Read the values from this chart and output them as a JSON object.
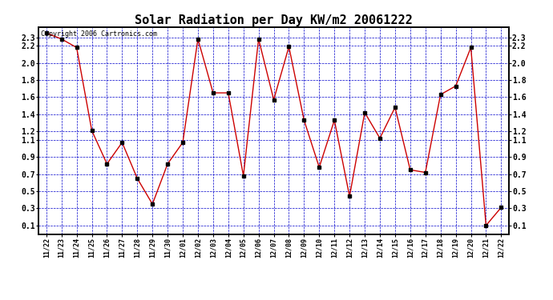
{
  "title": "Solar Radiation per Day KW/m2 20061222",
  "copyright": "Copyright 2006 Cartronics.com",
  "dates": [
    "11/22",
    "11/23",
    "11/24",
    "11/25",
    "11/26",
    "11/27",
    "11/28",
    "11/29",
    "11/30",
    "12/01",
    "12/02",
    "12/03",
    "12/04",
    "12/05",
    "12/06",
    "12/07",
    "12/08",
    "12/09",
    "12/10",
    "12/11",
    "12/12",
    "12/13",
    "12/14",
    "12/15",
    "12/16",
    "12/17",
    "12/18",
    "12/19",
    "12/20",
    "12/21",
    "12/22"
  ],
  "values": [
    2.35,
    2.28,
    2.18,
    1.21,
    0.82,
    1.07,
    0.65,
    0.35,
    0.82,
    1.07,
    2.28,
    1.65,
    1.65,
    0.68,
    2.28,
    1.57,
    2.19,
    1.33,
    0.78,
    1.33,
    0.44,
    1.42,
    1.12,
    1.48,
    0.75,
    0.72,
    1.63,
    1.73,
    2.18,
    0.1,
    0.31
  ],
  "yticks": [
    0.1,
    0.3,
    0.5,
    0.7,
    0.9,
    1.1,
    1.2,
    1.4,
    1.6,
    1.8,
    2.0,
    2.2,
    2.3
  ],
  "ylim": [
    0.0,
    2.42
  ],
  "line_color": "#cc0000",
  "marker_color": "#000000",
  "bg_color": "#ffffff",
  "grid_color": "#0000cc",
  "title_fontsize": 11,
  "copyright_fontsize": 6,
  "tick_fontsize": 7,
  "xtick_fontsize": 6
}
